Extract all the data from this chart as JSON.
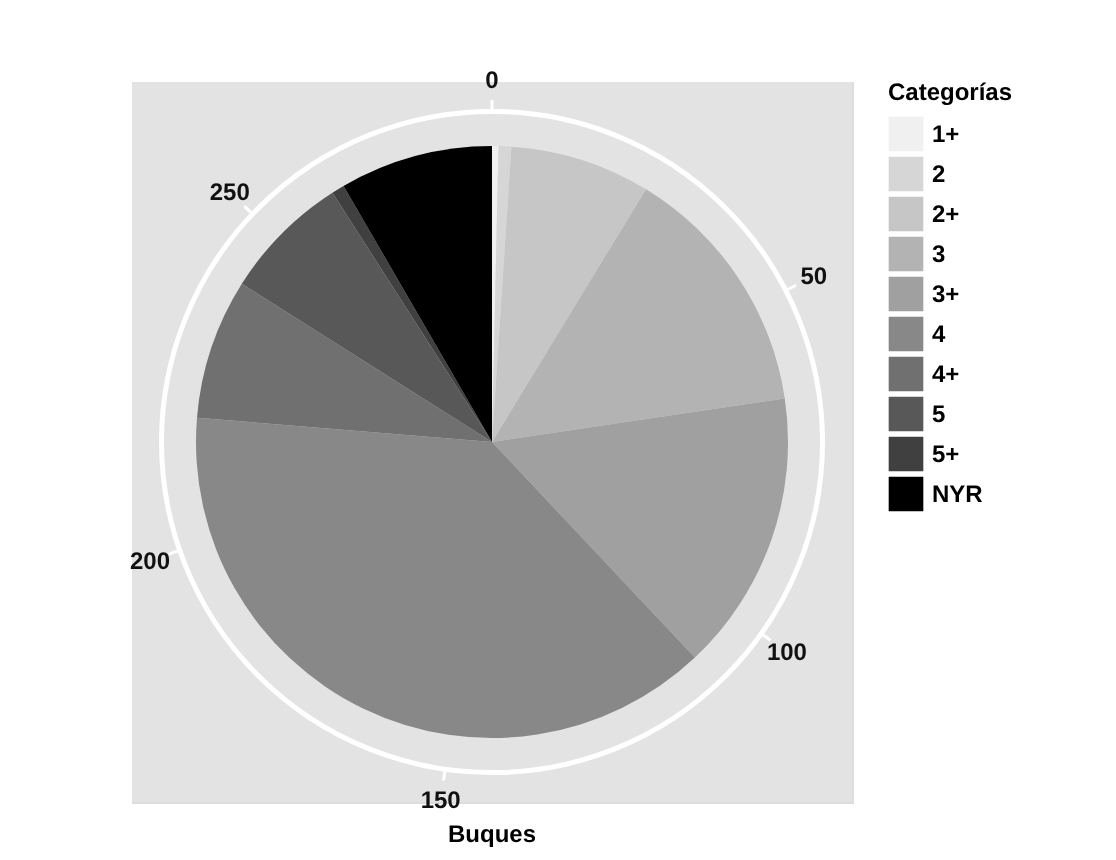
{
  "chart_data": {
    "type": "pie",
    "xlabel": "Buques",
    "legend_title": "Categorías",
    "categories": [
      "1+",
      "2",
      "2+",
      "3",
      "3+",
      "4",
      "4+",
      "5",
      "5+",
      "NYR"
    ],
    "values": [
      1,
      2,
      22,
      40,
      44,
      110,
      22,
      20,
      2,
      24
    ],
    "colors": [
      "#f0f0f0",
      "#d6d6d6",
      "#c6c6c6",
      "#b3b3b3",
      "#a0a0a0",
      "#888888",
      "#707070",
      "#585858",
      "#404040",
      "#000000"
    ],
    "annotations": [
      "0",
      "50",
      "100",
      "150",
      "200",
      "250"
    ],
    "legend": "right"
  }
}
